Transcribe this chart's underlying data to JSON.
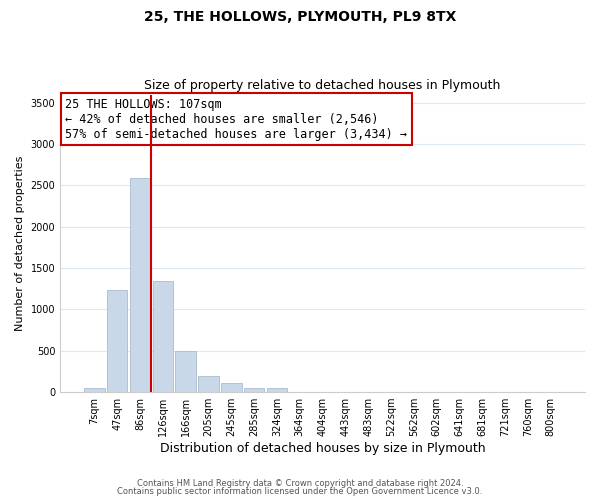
{
  "title": "25, THE HOLLOWS, PLYMOUTH, PL9 8TX",
  "subtitle": "Size of property relative to detached houses in Plymouth",
  "xlabel": "Distribution of detached houses by size in Plymouth",
  "ylabel": "Number of detached properties",
  "bar_labels": [
    "7sqm",
    "47sqm",
    "86sqm",
    "126sqm",
    "166sqm",
    "205sqm",
    "245sqm",
    "285sqm",
    "324sqm",
    "364sqm",
    "404sqm",
    "443sqm",
    "483sqm",
    "522sqm",
    "562sqm",
    "602sqm",
    "641sqm",
    "681sqm",
    "721sqm",
    "760sqm",
    "800sqm"
  ],
  "bar_values": [
    50,
    1230,
    2590,
    1350,
    500,
    200,
    110,
    50,
    50,
    0,
    0,
    0,
    0,
    0,
    0,
    0,
    0,
    0,
    0,
    0,
    0
  ],
  "bar_color": "#c8d8e8",
  "bar_edge_color": "#aabcce",
  "vline_pos": 2.5,
  "vline_color": "#cc0000",
  "annotation_text": "25 THE HOLLOWS: 107sqm\n← 42% of detached houses are smaller (2,546)\n57% of semi-detached houses are larger (3,434) →",
  "annotation_box_edgecolor": "#cc0000",
  "annotation_box_facecolor": "#ffffff",
  "annotation_fontsize": 8.5,
  "ylim": [
    0,
    3600
  ],
  "yticks": [
    0,
    500,
    1000,
    1500,
    2000,
    2500,
    3000,
    3500
  ],
  "title_fontsize": 10,
  "subtitle_fontsize": 9,
  "xlabel_fontsize": 9,
  "ylabel_fontsize": 8,
  "tick_fontsize": 7,
  "footer_line1": "Contains HM Land Registry data © Crown copyright and database right 2024.",
  "footer_line2": "Contains public sector information licensed under the Open Government Licence v3.0.",
  "background_color": "#ffffff",
  "grid_color": "#dde8f0"
}
